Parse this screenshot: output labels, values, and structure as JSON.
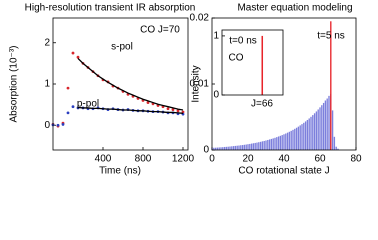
{
  "chart_data": [
    {
      "type": "scatter",
      "title": "High-resolution transient IR absorption",
      "x_label": "Time (ns)",
      "y_label": "Absorption (10⁻³)",
      "x": [
        -100,
        -50,
        0,
        50,
        100,
        150,
        200,
        250,
        300,
        350,
        400,
        450,
        500,
        550,
        600,
        650,
        700,
        750,
        800,
        850,
        900,
        950,
        1000,
        1050,
        1100,
        1150,
        1200
      ],
      "series": [
        {
          "name": "s-pol",
          "color": "#d8262c",
          "values": [
            0.02,
            -0.02,
            0.05,
            0.9,
            1.75,
            1.65,
            1.5,
            1.4,
            1.3,
            1.2,
            1.1,
            1.05,
            0.95,
            0.9,
            0.82,
            0.75,
            0.7,
            0.65,
            0.6,
            0.55,
            0.52,
            0.48,
            0.45,
            0.4,
            0.38,
            0.35,
            0.32
          ]
        },
        {
          "type": "line",
          "color": "#000000",
          "values": [
            null,
            null,
            null,
            null,
            null,
            1.62,
            1.5,
            1.4,
            1.3,
            1.2,
            1.12,
            1.04,
            0.97,
            0.9,
            0.84,
            0.78,
            0.73,
            0.68,
            0.63,
            0.59,
            0.55,
            0.51,
            0.48,
            0.45,
            0.42,
            0.39,
            0.37
          ]
        },
        {
          "name": "p-pol",
          "color": "#2b3fc0",
          "values": [
            0.01,
            0,
            0.02,
            0.3,
            0.45,
            0.42,
            0.42,
            0.4,
            0.4,
            0.42,
            0.4,
            0.38,
            0.4,
            0.38,
            0.37,
            0.38,
            0.36,
            0.35,
            0.35,
            0.34,
            0.33,
            0.33,
            0.32,
            0.3,
            0.3,
            0.28,
            0.27
          ]
        },
        {
          "type": "line",
          "color": "#000000",
          "values": [
            null,
            null,
            null,
            null,
            null,
            0.43,
            0.42,
            0.42,
            0.41,
            0.41,
            0.4,
            0.39,
            0.39,
            0.38,
            0.37,
            0.37,
            0.36,
            0.35,
            0.35,
            0.34,
            0.33,
            0.33,
            0.32,
            0.31,
            0.31,
            0.3,
            0.29
          ]
        }
      ],
      "annotations": [
        "CO J=70"
      ],
      "xlim": [
        -100,
        1250
      ],
      "xticks": [
        400,
        800,
        1200
      ],
      "ylim": [
        -0.6,
        2.6
      ],
      "yticks": [
        0,
        1,
        2
      ]
    },
    {
      "type": "bar",
      "title": "Master equation modeling",
      "x_label": "CO rotational state J",
      "y_label": "Intensity",
      "x": [
        0,
        1,
        2,
        3,
        4,
        5,
        6,
        7,
        8,
        9,
        10,
        11,
        12,
        13,
        14,
        15,
        16,
        17,
        18,
        19,
        20,
        21,
        22,
        23,
        24,
        25,
        26,
        27,
        28,
        29,
        30,
        31,
        32,
        33,
        34,
        35,
        36,
        37,
        38,
        39,
        40,
        41,
        42,
        43,
        44,
        45,
        46,
        47,
        48,
        49,
        50,
        51,
        52,
        53,
        54,
        55,
        56,
        57,
        58,
        59,
        60,
        61,
        62,
        63,
        64,
        65,
        66,
        67,
        68,
        69,
        70
      ],
      "series": [
        {
          "color": "#7c7fdc",
          "values": [
            0.00032,
            0.00034,
            0.00035,
            0.00037,
            0.00039,
            0.00041,
            0.00043,
            0.00046,
            0.00048,
            0.0005,
            0.00053,
            0.00056,
            0.00059,
            0.00062,
            0.00065,
            0.00068,
            0.00072,
            0.00075,
            0.00079,
            0.00083,
            0.00088,
            0.00092,
            0.00097,
            0.00102,
            0.00107,
            0.00112,
            0.00118,
            0.00124,
            0.00131,
            0.00137,
            0.00144,
            0.00152,
            0.0016,
            0.00168,
            0.00176,
            0.00185,
            0.00195,
            0.00205,
            0.00215,
            0.00226,
            0.00238,
            0.0025,
            0.00263,
            0.00276,
            0.0029,
            0.00305,
            0.00321,
            0.00337,
            0.00354,
            0.00373,
            0.00392,
            0.00412,
            0.00433,
            0.00455,
            0.00478,
            0.00503,
            0.00529,
            0.00556,
            0.00584,
            0.00614,
            0.00646,
            0.00679,
            0.00713,
            0.0075,
            0.0078,
            0.0082,
            0.0085,
            0.006,
            0.002,
            0.0005,
            0.0002
          ]
        },
        {
          "color": "#e8242a",
          "x": [
            66
          ],
          "values": [
            0.0195
          ]
        }
      ],
      "annotations": [
        "t=5 ns"
      ],
      "xlim": [
        0,
        80
      ],
      "xticks": [
        0,
        20,
        40,
        60,
        80
      ],
      "ylim": [
        0,
        0.02
      ],
      "yticks": [
        0,
        0.01,
        0.02
      ]
    },
    {
      "type": "bar",
      "x": [
        66
      ],
      "series": [
        {
          "color": "#e8242a",
          "values": [
            1
          ]
        }
      ],
      "annotations": [
        "t=0 ns",
        "CO",
        "J=66"
      ],
      "xlim": [
        0,
        100
      ],
      "ylim": [
        0,
        1.1
      ],
      "yticks": [
        0,
        1
      ]
    }
  ]
}
